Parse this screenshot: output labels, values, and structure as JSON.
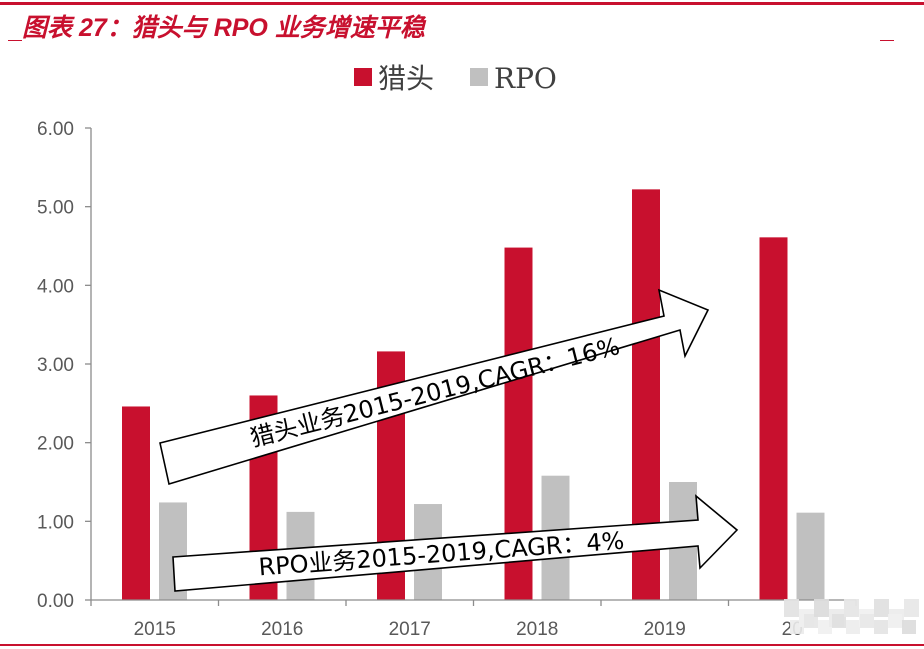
{
  "header": {
    "title": "图表 27：猎头与 RPO 业务增速平稳"
  },
  "chart_data": {
    "type": "bar",
    "categories": [
      "2015",
      "2016",
      "2017",
      "2018",
      "2019",
      "20"
    ],
    "series": [
      {
        "name": "猎头",
        "values": [
          2.46,
          2.6,
          3.16,
          4.48,
          5.22,
          4.61
        ]
      },
      {
        "name": "RPO",
        "values": [
          1.24,
          1.12,
          1.22,
          1.58,
          1.5,
          1.11
        ]
      }
    ],
    "ylim": [
      0,
      6
    ],
    "yticks": [
      "0.00",
      "1.00",
      "2.00",
      "3.00",
      "4.00",
      "5.00",
      "6.00"
    ],
    "legend_position": "top-center",
    "grid": false,
    "colors": {
      "猎头": "#c8102e",
      "RPO": "#c0c0c0"
    },
    "annotations": [
      "猎头业务2015-2019,CAGR：16%",
      "RPO业务2015-2019,CAGR：4%"
    ]
  }
}
